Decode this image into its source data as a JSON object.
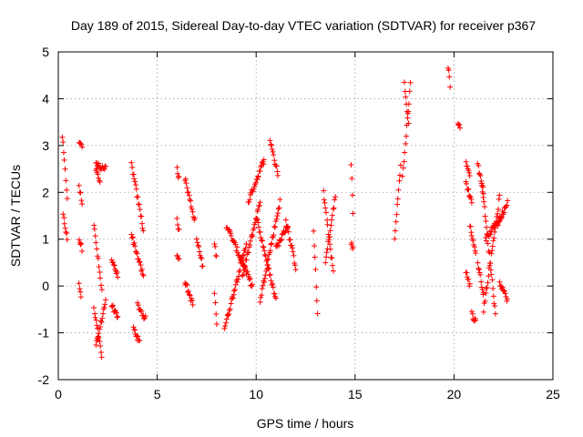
{
  "chart_data": {
    "type": "scatter",
    "title": "Day 189 of 2015, Sidereal Day-to-day VTEC variation (SDTVAR) for receiver p367",
    "xlabel": "GPS time / hours",
    "ylabel": "SDTVAR / TECUs",
    "xlim": [
      0,
      25
    ],
    "ylim": [
      -2,
      5
    ],
    "xticks": [
      0,
      5,
      10,
      15,
      20,
      25
    ],
    "yticks": [
      -2,
      -1,
      0,
      1,
      2,
      3,
      4,
      5
    ],
    "grid": true,
    "marker": "+",
    "color": "#ff0000",
    "series": [
      {
        "name": "SDTVAR",
        "segments": [
          {
            "x0": 0.2,
            "x1": 0.45,
            "y0": 3.2,
            "y1": 1.9
          },
          {
            "x0": 0.25,
            "x1": 0.45,
            "y0": 1.5,
            "y1": 1.0
          },
          {
            "x0": 1.05,
            "x1": 1.2,
            "y0": 3.1,
            "y1": 3.0
          },
          {
            "x0": 1.05,
            "x1": 1.2,
            "y0": 2.1,
            "y1": 1.8
          },
          {
            "x0": 1.05,
            "x1": 1.2,
            "y0": 1.0,
            "y1": 0.8
          },
          {
            "x0": 1.05,
            "x1": 1.15,
            "y0": 0.1,
            "y1": -0.2
          },
          {
            "x0": 1.8,
            "x1": 2.2,
            "y0": 1.3,
            "y1": -0.1
          },
          {
            "x0": 1.8,
            "x1": 2.2,
            "y0": -0.5,
            "y1": -1.5
          },
          {
            "x0": 1.9,
            "x1": 2.4,
            "y0": -1.3,
            "y1": -0.3
          },
          {
            "x0": 1.9,
            "x1": 2.4,
            "y0": 2.6,
            "y1": 2.5
          },
          {
            "x0": 1.9,
            "x1": 2.1,
            "y0": 2.5,
            "y1": 2.2
          },
          {
            "x0": 2.7,
            "x1": 3.0,
            "y0": 0.6,
            "y1": 0.2
          },
          {
            "x0": 2.7,
            "x1": 3.0,
            "y0": -0.4,
            "y1": -0.7
          },
          {
            "x0": 3.7,
            "x1": 4.3,
            "y0": 2.6,
            "y1": 1.2
          },
          {
            "x0": 3.7,
            "x1": 4.3,
            "y0": 1.1,
            "y1": 0.2
          },
          {
            "x0": 3.8,
            "x1": 4.1,
            "y0": -0.9,
            "y1": -1.2
          },
          {
            "x0": 4.0,
            "x1": 4.4,
            "y0": -0.4,
            "y1": -0.7
          },
          {
            "x0": 6.0,
            "x1": 6.1,
            "y0": 2.5,
            "y1": 2.3
          },
          {
            "x0": 6.0,
            "x1": 6.1,
            "y0": 1.4,
            "y1": 1.2
          },
          {
            "x0": 6.0,
            "x1": 6.1,
            "y0": 0.7,
            "y1": 0.6
          },
          {
            "x0": 6.4,
            "x1": 6.9,
            "y0": 2.3,
            "y1": 1.4
          },
          {
            "x0": 6.4,
            "x1": 6.8,
            "y0": 0.1,
            "y1": -0.4
          },
          {
            "x0": 7.0,
            "x1": 7.3,
            "y0": 1.0,
            "y1": 0.4
          },
          {
            "x0": 7.9,
            "x1": 8.0,
            "y0": 0.9,
            "y1": 0.6
          },
          {
            "x0": 7.9,
            "x1": 8.0,
            "y0": -0.1,
            "y1": -0.8
          },
          {
            "x0": 8.4,
            "x1": 9.5,
            "y0": -0.9,
            "y1": 0.9
          },
          {
            "x0": 8.5,
            "x1": 9.8,
            "y0": 1.3,
            "y1": 0.0
          },
          {
            "x0": 9.3,
            "x1": 10.2,
            "y0": 0.2,
            "y1": 1.8
          },
          {
            "x0": 9.6,
            "x1": 10.4,
            "y0": 1.8,
            "y1": 2.7
          },
          {
            "x0": 10.0,
            "x1": 11.0,
            "y0": 1.5,
            "y1": -0.3
          },
          {
            "x0": 10.2,
            "x1": 11.2,
            "y0": -0.3,
            "y1": 1.8
          },
          {
            "x0": 10.7,
            "x1": 11.1,
            "y0": 3.1,
            "y1": 2.4
          },
          {
            "x0": 11.0,
            "x1": 11.6,
            "y0": 0.8,
            "y1": 1.3
          },
          {
            "x0": 11.5,
            "x1": 12.0,
            "y0": 1.4,
            "y1": 0.4
          },
          {
            "x0": 12.9,
            "x1": 13.1,
            "y0": 1.2,
            "y1": -0.6
          },
          {
            "x0": 13.4,
            "x1": 13.9,
            "y0": 2.0,
            "y1": 0.3
          },
          {
            "x0": 13.5,
            "x1": 14.0,
            "y0": 0.5,
            "y1": 1.9
          },
          {
            "x0": 14.8,
            "x1": 14.9,
            "y0": 2.6,
            "y1": 1.6
          },
          {
            "x0": 14.8,
            "x1": 14.9,
            "y0": 0.9,
            "y1": 0.8
          },
          {
            "x0": 17.0,
            "x1": 17.3,
            "y0": 1.0,
            "y1": 2.6
          },
          {
            "x0": 17.4,
            "x1": 17.8,
            "y0": 2.3,
            "y1": 4.3
          },
          {
            "x0": 17.5,
            "x1": 17.7,
            "y0": 4.3,
            "y1": 3.5
          },
          {
            "x0": 19.7,
            "x1": 19.8,
            "y0": 4.7,
            "y1": 4.3
          },
          {
            "x0": 20.2,
            "x1": 20.3,
            "y0": 3.5,
            "y1": 3.4
          },
          {
            "x0": 20.6,
            "x1": 20.8,
            "y0": 2.6,
            "y1": 2.4
          },
          {
            "x0": 20.6,
            "x1": 20.9,
            "y0": 2.2,
            "y1": 1.8
          },
          {
            "x0": 20.6,
            "x1": 20.8,
            "y0": 0.3,
            "y1": 0.0
          },
          {
            "x0": 20.8,
            "x1": 21.1,
            "y0": 1.3,
            "y1": 0.7
          },
          {
            "x0": 20.9,
            "x1": 21.1,
            "y0": -0.6,
            "y1": -0.75
          },
          {
            "x0": 21.2,
            "x1": 21.5,
            "y0": 2.6,
            "y1": 2.0
          },
          {
            "x0": 21.2,
            "x1": 21.5,
            "y0": 0.5,
            "y1": -0.2
          },
          {
            "x0": 21.4,
            "x1": 22.1,
            "y0": 2.2,
            "y1": -0.6
          },
          {
            "x0": 21.5,
            "x1": 22.3,
            "y0": -0.5,
            "y1": 1.9
          },
          {
            "x0": 21.6,
            "x1": 22.4,
            "y0": 1.0,
            "y1": 1.5
          },
          {
            "x0": 22.2,
            "x1": 22.7,
            "y0": 1.3,
            "y1": 1.8
          },
          {
            "x0": 22.3,
            "x1": 22.7,
            "y0": 0.1,
            "y1": -0.3
          }
        ],
        "step_hours": 0.035,
        "noise": 0.06
      }
    ]
  }
}
